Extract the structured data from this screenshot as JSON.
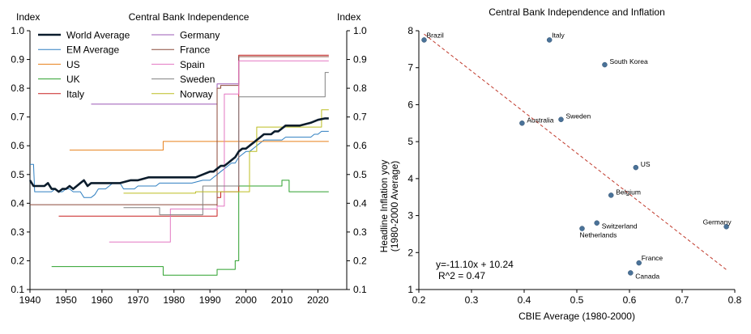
{
  "chart_data": [
    {
      "type": "line",
      "title": "Central Bank Independence",
      "ylabel_left": "Index",
      "ylabel_right": "Index",
      "xlim": [
        1940,
        2028
      ],
      "ylim": [
        0.1,
        1.0
      ],
      "xticks": [
        1940,
        1950,
        1960,
        1970,
        1980,
        1990,
        2000,
        2010,
        2020
      ],
      "yticks": [
        0.1,
        0.2,
        0.3,
        0.4,
        0.5,
        0.6,
        0.7,
        0.8,
        0.9,
        1.0
      ],
      "ytick_labels": [
        "0.1",
        "0.2",
        "0.3",
        "0.4",
        "0.5",
        "0.6",
        "0.7",
        "0.8",
        "0.9",
        "1.0"
      ],
      "grid": false,
      "legend_position": "top-left",
      "series": [
        {
          "name": "World Average",
          "color": "#0b1c2c",
          "width": 2.6,
          "step": false,
          "points": [
            [
              1940,
              0.48
            ],
            [
              1941,
              0.46
            ],
            [
              1942,
              0.46
            ],
            [
              1944,
              0.46
            ],
            [
              1945,
              0.47
            ],
            [
              1946,
              0.45
            ],
            [
              1947,
              0.45
            ],
            [
              1948,
              0.44
            ],
            [
              1949,
              0.45
            ],
            [
              1950,
              0.45
            ],
            [
              1951,
              0.46
            ],
            [
              1952,
              0.45
            ],
            [
              1953,
              0.46
            ],
            [
              1954,
              0.47
            ],
            [
              1955,
              0.48
            ],
            [
              1956,
              0.46
            ],
            [
              1957,
              0.47
            ],
            [
              1960,
              0.47
            ],
            [
              1965,
              0.47
            ],
            [
              1968,
              0.48
            ],
            [
              1970,
              0.48
            ],
            [
              1973,
              0.49
            ],
            [
              1976,
              0.49
            ],
            [
              1978,
              0.49
            ],
            [
              1980,
              0.49
            ],
            [
              1982,
              0.49
            ],
            [
              1984,
              0.49
            ],
            [
              1986,
              0.49
            ],
            [
              1988,
              0.5
            ],
            [
              1990,
              0.51
            ],
            [
              1991,
              0.51
            ],
            [
              1992,
              0.52
            ],
            [
              1993,
              0.53
            ],
            [
              1994,
              0.53
            ],
            [
              1995,
              0.54
            ],
            [
              1996,
              0.55
            ],
            [
              1997,
              0.56
            ],
            [
              1998,
              0.58
            ],
            [
              1999,
              0.59
            ],
            [
              2000,
              0.59
            ],
            [
              2001,
              0.6
            ],
            [
              2002,
              0.61
            ],
            [
              2003,
              0.62
            ],
            [
              2004,
              0.63
            ],
            [
              2005,
              0.64
            ],
            [
              2006,
              0.64
            ],
            [
              2007,
              0.64
            ],
            [
              2008,
              0.65
            ],
            [
              2009,
              0.65
            ],
            [
              2010,
              0.66
            ],
            [
              2011,
              0.67
            ],
            [
              2012,
              0.67
            ],
            [
              2015,
              0.67
            ],
            [
              2018,
              0.68
            ],
            [
              2020,
              0.69
            ],
            [
              2022,
              0.695
            ],
            [
              2023,
              0.695
            ]
          ]
        },
        {
          "name": "EM Average",
          "color": "#2f7fc1",
          "width": 1,
          "step": false,
          "points": [
            [
              1940,
              0.535
            ],
            [
              1941,
              0.535
            ],
            [
              1941.3,
              0.44
            ],
            [
              1944,
              0.44
            ],
            [
              1946,
              0.44
            ],
            [
              1947,
              0.45
            ],
            [
              1948,
              0.44
            ],
            [
              1949,
              0.44
            ],
            [
              1950,
              0.45
            ],
            [
              1951,
              0.45
            ],
            [
              1952,
              0.44
            ],
            [
              1953,
              0.44
            ],
            [
              1954,
              0.44
            ],
            [
              1955,
              0.42
            ],
            [
              1957,
              0.42
            ],
            [
              1958,
              0.43
            ],
            [
              1959,
              0.45
            ],
            [
              1960,
              0.45
            ],
            [
              1961,
              0.45
            ],
            [
              1962,
              0.46
            ],
            [
              1963,
              0.47
            ],
            [
              1964,
              0.47
            ],
            [
              1965,
              0.47
            ],
            [
              1966,
              0.45
            ],
            [
              1969,
              0.45
            ],
            [
              1970,
              0.46
            ],
            [
              1972,
              0.46
            ],
            [
              1975,
              0.46
            ],
            [
              1976,
              0.47
            ],
            [
              1980,
              0.47
            ],
            [
              1985,
              0.47
            ],
            [
              1988,
              0.48
            ],
            [
              1990,
              0.48
            ],
            [
              1991,
              0.49
            ],
            [
              1992,
              0.5
            ],
            [
              1993,
              0.51
            ],
            [
              1994,
              0.52
            ],
            [
              1995,
              0.53
            ],
            [
              1996,
              0.54
            ],
            [
              1997,
              0.54
            ],
            [
              1998,
              0.56
            ],
            [
              1999,
              0.57
            ],
            [
              2000,
              0.58
            ],
            [
              2001,
              0.58
            ],
            [
              2002,
              0.59
            ],
            [
              2003,
              0.6
            ],
            [
              2004,
              0.61
            ],
            [
              2005,
              0.62
            ],
            [
              2008,
              0.62
            ],
            [
              2010,
              0.62
            ],
            [
              2011,
              0.63
            ],
            [
              2015,
              0.63
            ],
            [
              2018,
              0.63
            ],
            [
              2019,
              0.64
            ],
            [
              2020,
              0.64
            ],
            [
              2021,
              0.65
            ],
            [
              2022,
              0.65
            ],
            [
              2023,
              0.65
            ]
          ]
        },
        {
          "name": "US",
          "color": "#e8801a",
          "width": 1,
          "step": true,
          "points": [
            [
              1951,
              0.585
            ],
            [
              1977,
              0.615
            ],
            [
              2023,
              0.615
            ]
          ]
        },
        {
          "name": "UK",
          "color": "#2ca02c",
          "width": 1,
          "step": true,
          "points": [
            [
              1946,
              0.18
            ],
            [
              1977,
              0.15
            ],
            [
              1992,
              0.17
            ],
            [
              1997,
              0.2
            ],
            [
              1998,
              0.46
            ],
            [
              2010,
              0.48
            ],
            [
              2012,
              0.44
            ],
            [
              2023,
              0.44
            ]
          ]
        },
        {
          "name": "Italy",
          "color": "#c82020",
          "width": 1,
          "step": true,
          "points": [
            [
              1948,
              0.355
            ],
            [
              1992,
              0.42
            ],
            [
              1993,
              0.44
            ],
            [
              1998,
              0.915
            ],
            [
              2023,
              0.915
            ]
          ]
        },
        {
          "name": "Germany",
          "color": "#9b59b6",
          "width": 1,
          "step": true,
          "points": [
            [
              1957,
              0.745
            ],
            [
              1992,
              0.815
            ],
            [
              1998,
              0.91
            ],
            [
              2023,
              0.91
            ]
          ]
        },
        {
          "name": "France",
          "color": "#8c4a3a",
          "width": 1,
          "step": true,
          "points": [
            [
              1940,
              0.395
            ],
            [
              1992,
              0.8
            ],
            [
              1993,
              0.81
            ],
            [
              1998,
              0.91
            ],
            [
              2023,
              0.91
            ]
          ]
        },
        {
          "name": "Spain",
          "color": "#e377c2",
          "width": 1,
          "step": true,
          "points": [
            [
              1962,
              0.265
            ],
            [
              1979,
              0.38
            ],
            [
              1992,
              0.39
            ],
            [
              1994,
              0.78
            ],
            [
              1998,
              0.895
            ],
            [
              2023,
              0.895
            ]
          ]
        },
        {
          "name": "Sweden",
          "color": "#808080",
          "width": 1,
          "step": true,
          "points": [
            [
              1966,
              0.385
            ],
            [
              1976,
              0.36
            ],
            [
              1988,
              0.46
            ],
            [
              1992,
              0.46
            ],
            [
              1998,
              0.77
            ],
            [
              2022,
              0.855
            ],
            [
              2023,
              0.855
            ]
          ]
        },
        {
          "name": "Norway",
          "color": "#bcbd22",
          "width": 1,
          "step": true,
          "points": [
            [
              1966,
              0.435
            ],
            [
              1986,
              0.44
            ],
            [
              1990,
              0.44
            ],
            [
              2001,
              0.58
            ],
            [
              2003,
              0.665
            ],
            [
              2021,
              0.725
            ],
            [
              2023,
              0.725
            ]
          ]
        }
      ]
    },
    {
      "type": "scatter",
      "title": "Central Bank Independence and Inflation",
      "xlabel": "CBIE Average (1980-2000)",
      "ylabel_lines": [
        "Headline Inflation yoy",
        "(1980-2000 Average)"
      ],
      "xlim": [
        0.2,
        0.8
      ],
      "ylim": [
        1,
        8
      ],
      "xticks": [
        0.2,
        0.3,
        0.4,
        0.5,
        0.6,
        0.7,
        0.8
      ],
      "xtick_labels": [
        "0.2",
        "0.3",
        "0.4",
        "0.5",
        "0.6",
        "0.7",
        "0.8"
      ],
      "yticks": [
        1,
        2,
        3,
        4,
        5,
        6,
        7,
        8
      ],
      "grid": false,
      "marker_color": "#4a7298",
      "points": [
        {
          "label": "Brazil",
          "x": 0.21,
          "y": 7.75,
          "label_pos": "right-up"
        },
        {
          "label": "Italy",
          "x": 0.448,
          "y": 7.75,
          "label_pos": "right-up"
        },
        {
          "label": "South Korea",
          "x": 0.553,
          "y": 7.08,
          "label_pos": "right"
        },
        {
          "label": "Australia",
          "x": 0.396,
          "y": 5.5,
          "label_pos": "right"
        },
        {
          "label": "Sweden",
          "x": 0.47,
          "y": 5.6,
          "label_pos": "right"
        },
        {
          "label": "US",
          "x": 0.612,
          "y": 4.3,
          "label_pos": "right"
        },
        {
          "label": "Belgium",
          "x": 0.565,
          "y": 3.55,
          "label_pos": "right"
        },
        {
          "label": "Switzerland",
          "x": 0.538,
          "y": 2.8,
          "label_pos": "right-below"
        },
        {
          "label": "Netherlands",
          "x": 0.51,
          "y": 2.65,
          "label_pos": "below"
        },
        {
          "label": "Germany",
          "x": 0.784,
          "y": 2.7,
          "label_pos": "left-up"
        },
        {
          "label": "France",
          "x": 0.618,
          "y": 1.72,
          "label_pos": "right-up"
        },
        {
          "label": "Canada",
          "x": 0.602,
          "y": 1.45,
          "label_pos": "right-below"
        }
      ],
      "fit_line": {
        "slope": -11.1,
        "intercept": 10.24,
        "x_range": [
          0.21,
          0.785
        ],
        "color": "#c0392b",
        "dash": true
      },
      "annotations": [
        "y=-11.10x + 10.24",
        "R^2 =  0.47"
      ]
    }
  ]
}
